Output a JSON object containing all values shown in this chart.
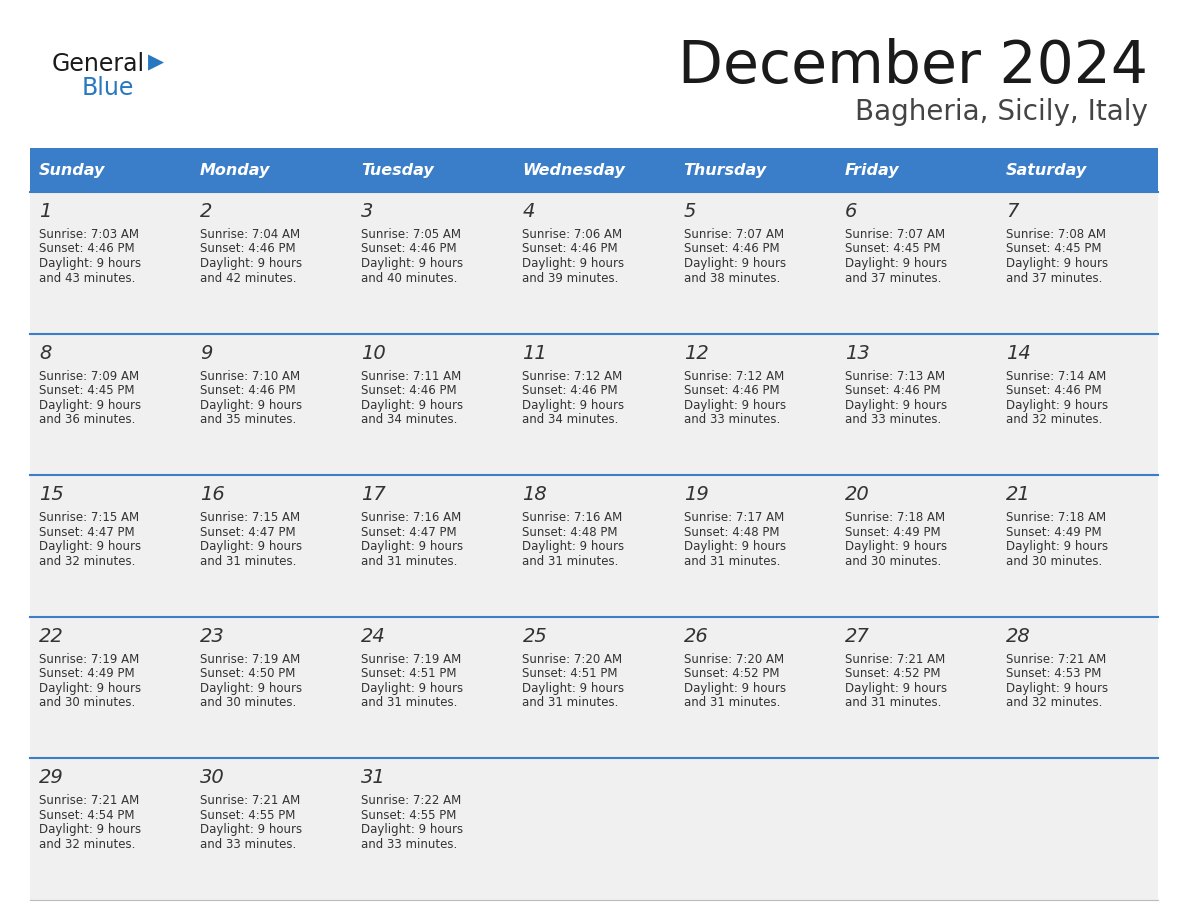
{
  "title": "December 2024",
  "subtitle": "Bagheria, Sicily, Italy",
  "header_bg": "#3A7DC9",
  "header_text_color": "#FFFFFF",
  "days_of_week": [
    "Sunday",
    "Monday",
    "Tuesday",
    "Wednesday",
    "Thursday",
    "Friday",
    "Saturday"
  ],
  "row_bg": "#F0F0F0",
  "cell_bg_empty": "#F0F0F0",
  "divider_color": "#3A7DC9",
  "text_color": "#333333",
  "logo_general_color": "#1a1a1a",
  "logo_blue_color": "#2878C0",
  "weeks": [
    [
      {
        "day": 1,
        "sunrise": "7:03 AM",
        "sunset": "4:46 PM",
        "daylight_h": "9 hours",
        "daylight_m": "43 minutes."
      },
      {
        "day": 2,
        "sunrise": "7:04 AM",
        "sunset": "4:46 PM",
        "daylight_h": "9 hours",
        "daylight_m": "42 minutes."
      },
      {
        "day": 3,
        "sunrise": "7:05 AM",
        "sunset": "4:46 PM",
        "daylight_h": "9 hours",
        "daylight_m": "40 minutes."
      },
      {
        "day": 4,
        "sunrise": "7:06 AM",
        "sunset": "4:46 PM",
        "daylight_h": "9 hours",
        "daylight_m": "39 minutes."
      },
      {
        "day": 5,
        "sunrise": "7:07 AM",
        "sunset": "4:46 PM",
        "daylight_h": "9 hours",
        "daylight_m": "38 minutes."
      },
      {
        "day": 6,
        "sunrise": "7:07 AM",
        "sunset": "4:45 PM",
        "daylight_h": "9 hours",
        "daylight_m": "37 minutes."
      },
      {
        "day": 7,
        "sunrise": "7:08 AM",
        "sunset": "4:45 PM",
        "daylight_h": "9 hours",
        "daylight_m": "37 minutes."
      }
    ],
    [
      {
        "day": 8,
        "sunrise": "7:09 AM",
        "sunset": "4:45 PM",
        "daylight_h": "9 hours",
        "daylight_m": "36 minutes."
      },
      {
        "day": 9,
        "sunrise": "7:10 AM",
        "sunset": "4:46 PM",
        "daylight_h": "9 hours",
        "daylight_m": "35 minutes."
      },
      {
        "day": 10,
        "sunrise": "7:11 AM",
        "sunset": "4:46 PM",
        "daylight_h": "9 hours",
        "daylight_m": "34 minutes."
      },
      {
        "day": 11,
        "sunrise": "7:12 AM",
        "sunset": "4:46 PM",
        "daylight_h": "9 hours",
        "daylight_m": "34 minutes."
      },
      {
        "day": 12,
        "sunrise": "7:12 AM",
        "sunset": "4:46 PM",
        "daylight_h": "9 hours",
        "daylight_m": "33 minutes."
      },
      {
        "day": 13,
        "sunrise": "7:13 AM",
        "sunset": "4:46 PM",
        "daylight_h": "9 hours",
        "daylight_m": "33 minutes."
      },
      {
        "day": 14,
        "sunrise": "7:14 AM",
        "sunset": "4:46 PM",
        "daylight_h": "9 hours",
        "daylight_m": "32 minutes."
      }
    ],
    [
      {
        "day": 15,
        "sunrise": "7:15 AM",
        "sunset": "4:47 PM",
        "daylight_h": "9 hours",
        "daylight_m": "32 minutes."
      },
      {
        "day": 16,
        "sunrise": "7:15 AM",
        "sunset": "4:47 PM",
        "daylight_h": "9 hours",
        "daylight_m": "31 minutes."
      },
      {
        "day": 17,
        "sunrise": "7:16 AM",
        "sunset": "4:47 PM",
        "daylight_h": "9 hours",
        "daylight_m": "31 minutes."
      },
      {
        "day": 18,
        "sunrise": "7:16 AM",
        "sunset": "4:48 PM",
        "daylight_h": "9 hours",
        "daylight_m": "31 minutes."
      },
      {
        "day": 19,
        "sunrise": "7:17 AM",
        "sunset": "4:48 PM",
        "daylight_h": "9 hours",
        "daylight_m": "31 minutes."
      },
      {
        "day": 20,
        "sunrise": "7:18 AM",
        "sunset": "4:49 PM",
        "daylight_h": "9 hours",
        "daylight_m": "30 minutes."
      },
      {
        "day": 21,
        "sunrise": "7:18 AM",
        "sunset": "4:49 PM",
        "daylight_h": "9 hours",
        "daylight_m": "30 minutes."
      }
    ],
    [
      {
        "day": 22,
        "sunrise": "7:19 AM",
        "sunset": "4:49 PM",
        "daylight_h": "9 hours",
        "daylight_m": "30 minutes."
      },
      {
        "day": 23,
        "sunrise": "7:19 AM",
        "sunset": "4:50 PM",
        "daylight_h": "9 hours",
        "daylight_m": "30 minutes."
      },
      {
        "day": 24,
        "sunrise": "7:19 AM",
        "sunset": "4:51 PM",
        "daylight_h": "9 hours",
        "daylight_m": "31 minutes."
      },
      {
        "day": 25,
        "sunrise": "7:20 AM",
        "sunset": "4:51 PM",
        "daylight_h": "9 hours",
        "daylight_m": "31 minutes."
      },
      {
        "day": 26,
        "sunrise": "7:20 AM",
        "sunset": "4:52 PM",
        "daylight_h": "9 hours",
        "daylight_m": "31 minutes."
      },
      {
        "day": 27,
        "sunrise": "7:21 AM",
        "sunset": "4:52 PM",
        "daylight_h": "9 hours",
        "daylight_m": "31 minutes."
      },
      {
        "day": 28,
        "sunrise": "7:21 AM",
        "sunset": "4:53 PM",
        "daylight_h": "9 hours",
        "daylight_m": "32 minutes."
      }
    ],
    [
      {
        "day": 29,
        "sunrise": "7:21 AM",
        "sunset": "4:54 PM",
        "daylight_h": "9 hours",
        "daylight_m": "32 minutes."
      },
      {
        "day": 30,
        "sunrise": "7:21 AM",
        "sunset": "4:55 PM",
        "daylight_h": "9 hours",
        "daylight_m": "33 minutes."
      },
      {
        "day": 31,
        "sunrise": "7:22 AM",
        "sunset": "4:55 PM",
        "daylight_h": "9 hours",
        "daylight_m": "33 minutes."
      },
      null,
      null,
      null,
      null
    ]
  ]
}
